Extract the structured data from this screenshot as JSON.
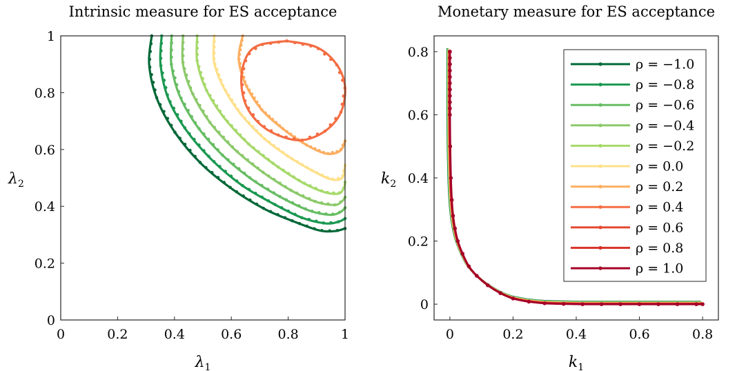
{
  "chart_data": [
    {
      "type": "line",
      "title": "Intrinsic measure for ES acceptance",
      "xlabel": "λ",
      "xlabel_sub": "1",
      "ylabel": "λ",
      "ylabel_sub": "2",
      "xlim": [
        0,
        1
      ],
      "ylim": [
        0,
        1
      ],
      "xticks": [
        "0",
        "0.2",
        "0.4",
        "0.6",
        "0.8",
        "1"
      ],
      "yticks": [
        "0",
        "0.2",
        "0.4",
        "0.6",
        "0.8",
        "1"
      ],
      "grid": false,
      "series": [
        {
          "color": "#006837",
          "x": [
            0.32,
            0.311,
            0.338,
            0.402,
            0.494,
            0.604,
            0.718,
            0.824,
            0.91,
            0.966,
            1.0
          ],
          "y": [
            1.0,
            0.9,
            0.78,
            0.66,
            0.55,
            0.46,
            0.39,
            0.345,
            0.315,
            0.313,
            0.322
          ]
        },
        {
          "color": "#1a9850",
          "x": [
            0.355,
            0.351,
            0.378,
            0.44,
            0.53,
            0.636,
            0.746,
            0.848,
            0.93,
            0.975,
            1.0
          ],
          "y": [
            1.0,
            0.9,
            0.78,
            0.67,
            0.565,
            0.475,
            0.41,
            0.36,
            0.34,
            0.345,
            0.357
          ]
        },
        {
          "color": "#66bd63",
          "x": [
            0.39,
            0.389,
            0.418,
            0.481,
            0.569,
            0.672,
            0.778,
            0.874,
            0.948,
            0.984,
            1.0
          ],
          "y": [
            1.0,
            0.9,
            0.79,
            0.68,
            0.58,
            0.495,
            0.43,
            0.385,
            0.37,
            0.38,
            0.395
          ]
        },
        {
          "color": "#8bc96a",
          "x": [
            0.43,
            0.43,
            0.462,
            0.525,
            0.612,
            0.711,
            0.812,
            0.9,
            0.964,
            0.99,
            1.0
          ],
          "y": [
            1.0,
            0.9,
            0.8,
            0.695,
            0.6,
            0.52,
            0.455,
            0.415,
            0.405,
            0.418,
            0.432
          ]
        },
        {
          "color": "#a6d96a",
          "x": [
            0.48,
            0.48,
            0.512,
            0.576,
            0.66,
            0.755,
            0.848,
            0.927,
            0.978,
            0.996,
            1.0
          ],
          "y": [
            1.0,
            0.91,
            0.81,
            0.71,
            0.62,
            0.545,
            0.485,
            0.45,
            0.445,
            0.465,
            0.485
          ]
        },
        {
          "color": "#fee08b",
          "x": [
            0.54,
            0.539,
            0.572,
            0.633,
            0.714,
            0.801,
            0.886,
            0.951,
            0.99,
            1.0
          ],
          "y": [
            1.0,
            0.91,
            0.82,
            0.725,
            0.64,
            0.575,
            0.525,
            0.495,
            0.5,
            0.545
          ]
        },
        {
          "color": "#fdae61",
          "x": [
            0.64,
            0.626,
            0.65,
            0.707,
            0.785,
            0.866,
            0.935,
            0.983,
            1.0
          ],
          "y": [
            1.0,
            0.92,
            0.83,
            0.74,
            0.67,
            0.615,
            0.585,
            0.595,
            0.63
          ]
        },
        {
          "color": "#f46d43",
          "x": [
            0.795,
            0.9,
            0.97,
            1.0,
            0.985,
            0.93,
            0.85,
            0.77,
            0.7,
            0.65,
            0.635,
            0.655,
            0.7,
            0.795
          ],
          "y": [
            0.982,
            0.96,
            0.9,
            0.82,
            0.73,
            0.665,
            0.633,
            0.648,
            0.69,
            0.76,
            0.85,
            0.93,
            0.968,
            0.982
          ]
        }
      ]
    },
    {
      "type": "line",
      "title": "Monetary measure for ES acceptance",
      "xlabel": "k",
      "xlabel_sub": "1",
      "ylabel": "k",
      "ylabel_sub": "2",
      "xlim": [
        -0.05,
        0.85
      ],
      "ylim": [
        -0.05,
        0.85
      ],
      "xticks": [
        "0",
        "0.2",
        "0.4",
        "0.6",
        "0.8"
      ],
      "yticks": [
        "0",
        "0.2",
        "0.4",
        "0.6",
        "0.8"
      ],
      "grid": false,
      "legend_position": "top-right",
      "legend": [
        "ρ = −1.0",
        "ρ = −0.8",
        "ρ = −0.6",
        "ρ = −0.4",
        "ρ = −0.2",
        "ρ = 0.0",
        "ρ = 0.2",
        "ρ = 0.4",
        "ρ = 0.6",
        "ρ = 0.8",
        "ρ = 1.0"
      ],
      "series_colors": [
        "#006837",
        "#1a9850",
        "#66bd63",
        "#8bc96a",
        "#a6d96a",
        "#fee08b",
        "#fdae61",
        "#f46d43",
        "#e34a33",
        "#d73027",
        "#a50026"
      ],
      "curve": {
        "x": [
          0,
          0,
          0,
          0,
          0.001,
          0.003,
          0.006,
          0.01,
          0.016,
          0.025,
          0.04,
          0.06,
          0.085,
          0.12,
          0.16,
          0.2,
          0.25,
          0.3,
          0.36,
          0.42,
          0.48,
          0.54,
          0.6,
          0.66,
          0.72,
          0.78,
          0.8
        ],
        "y": [
          0.8,
          0.76,
          0.68,
          0.6,
          0.5,
          0.4,
          0.33,
          0.28,
          0.24,
          0.2,
          0.16,
          0.12,
          0.09,
          0.06,
          0.035,
          0.018,
          0.008,
          0.003,
          0.001,
          0,
          0,
          0,
          0,
          0,
          0,
          0,
          0
        ]
      }
    }
  ]
}
